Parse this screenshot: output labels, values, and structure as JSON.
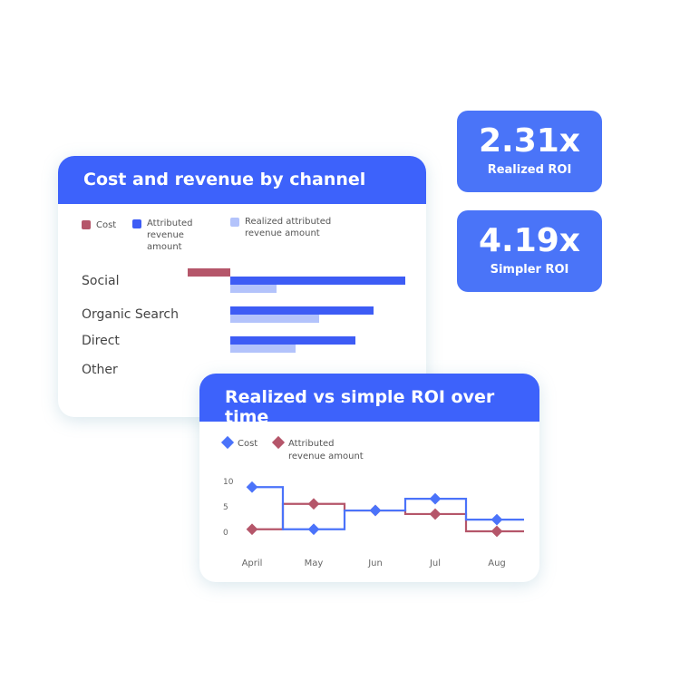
{
  "roi_tiles": [
    {
      "value": "2.31x",
      "label": "Realized ROI"
    },
    {
      "value": "4.19x",
      "label": "Simpler ROI"
    }
  ],
  "colors": {
    "header": "#3d62fb",
    "tile": "#4a74f8",
    "cost": "#b5566a",
    "attributed": "#3d5cf5",
    "realized": "#b3c3fb",
    "line_cost": "#4b73fa",
    "line_revenue": "#b5566a"
  },
  "chart_data": [
    {
      "type": "bar",
      "title": "Cost and revenue by channel",
      "orientation": "horizontal",
      "legend": [
        "Cost",
        "Attributed revenue amount",
        "Realized attributed revenue amount"
      ],
      "categories": [
        "Social",
        "Organic Search",
        "Direct",
        "Other"
      ],
      "series": [
        {
          "name": "Cost",
          "values": [
            -47,
            0,
            0,
            0
          ]
        },
        {
          "name": "Attributed revenue amount",
          "values": [
            193,
            158,
            138,
            0
          ]
        },
        {
          "name": "Realized attributed revenue amount",
          "values": [
            51,
            98,
            72,
            0
          ]
        }
      ],
      "grid": false
    },
    {
      "type": "line",
      "step": true,
      "title": "Realized vs simple ROI over time",
      "legend": [
        "Cost",
        "Attributed revenue amount"
      ],
      "categories": [
        "April",
        "May",
        "Jun",
        "Jul",
        "Aug"
      ],
      "yticks": [
        "10",
        "5",
        "0"
      ],
      "ylim": [
        0,
        10
      ],
      "series": [
        {
          "name": "Cost",
          "values": [
            8.7,
            0.4,
            4.1,
            6.4,
            2.3
          ]
        },
        {
          "name": "Attributed revenue amount",
          "values": [
            0.4,
            5.4,
            4.1,
            3.4,
            0
          ]
        }
      ],
      "grid": false
    }
  ]
}
